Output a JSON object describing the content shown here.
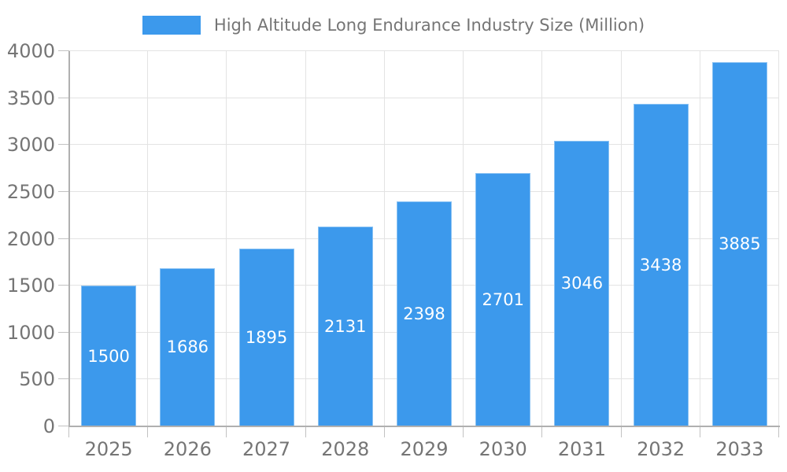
{
  "chart_data": {
    "type": "bar",
    "title": "High Altitude Long Endurance Industry Size (Million)",
    "legend_label": "High Altitude Long Endurance Industry Size (Million)",
    "legend_position": "top",
    "categories": [
      "2025",
      "2026",
      "2027",
      "2028",
      "2029",
      "2030",
      "2031",
      "2032",
      "2033"
    ],
    "values": [
      1500,
      1686,
      1895,
      2131,
      2398,
      2701,
      3046,
      3438,
      3885
    ],
    "value_labels": [
      "1500",
      "1686",
      "1895",
      "2131",
      "2398",
      "2701",
      "3046",
      "3438",
      "3885"
    ],
    "xlabel": "",
    "ylabel": "",
    "ylim": [
      0,
      4000
    ],
    "ytick_step": 500,
    "ytick_labels": [
      "0",
      "500",
      "1000",
      "1500",
      "2000",
      "2500",
      "3000",
      "3500",
      "4000"
    ],
    "grid": true,
    "bar_color": "#3C99EC",
    "bar_value_label_color": "#FFFFFF",
    "axis_label_color": "#757575",
    "grid_color": "#E3E3E3",
    "axis_line_color": "#B0B0B0",
    "tick_color": "#C2C2C2",
    "legend_text_color": "#757575"
  }
}
